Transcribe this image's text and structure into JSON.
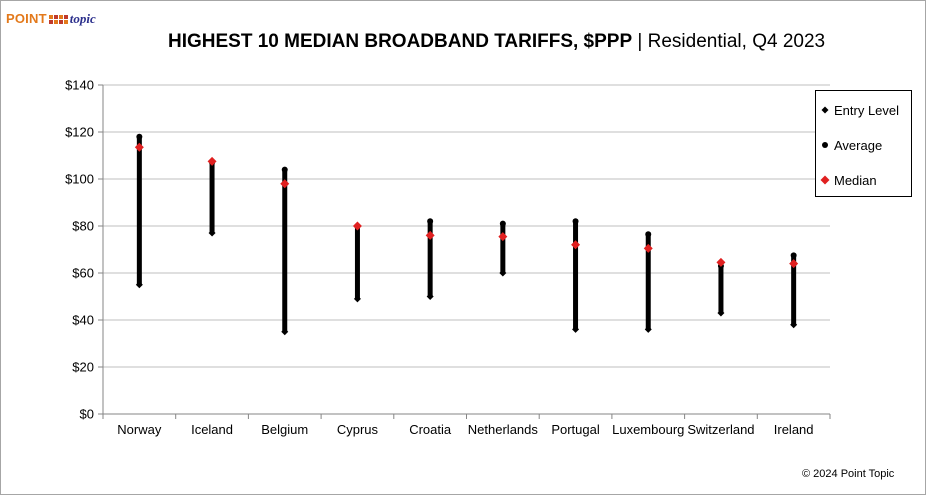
{
  "logo": {
    "word": "POINT",
    "topic": "topic"
  },
  "title": {
    "bold": "HIGHEST 10 MEDIAN BROADBAND TARIFFS, $PPP",
    "rest": " | Residential, Q4 2023"
  },
  "copyright": "© 2024 Point Topic",
  "colors": {
    "median": "#e02020",
    "marker": "#000000",
    "grid": "#bfbfbf",
    "axis": "#868686"
  },
  "chart_data": {
    "type": "scatter",
    "title": "HIGHEST 10 MEDIAN BROADBAND TARIFFS, $PPP | Residential, Q4 2023",
    "xlabel": "",
    "ylabel": "",
    "ylim": [
      0,
      140
    ],
    "y_ticks": [
      0,
      20,
      40,
      60,
      80,
      100,
      120,
      140
    ],
    "y_tick_labels": [
      "$0",
      "$20",
      "$40",
      "$60",
      "$80",
      "$100",
      "$120",
      "$140"
    ],
    "grid": true,
    "legend_position": "right",
    "categories": [
      "Norway",
      "Iceland",
      "Belgium",
      "Cyprus",
      "Croatia",
      "Netherlands",
      "Portugal",
      "Luxembourg",
      "Switzerland",
      "Ireland"
    ],
    "series": [
      {
        "name": "Entry Level",
        "values": [
          55,
          77,
          35,
          49,
          50,
          60,
          36,
          36,
          43,
          38
        ]
      },
      {
        "name": "Average",
        "values": [
          118,
          107,
          104,
          80,
          82,
          81,
          82,
          76.5,
          63,
          67.5
        ]
      },
      {
        "name": "Median",
        "values": [
          113.5,
          107.5,
          98,
          80,
          76,
          75.5,
          72,
          70.5,
          64.5,
          64
        ]
      }
    ]
  }
}
